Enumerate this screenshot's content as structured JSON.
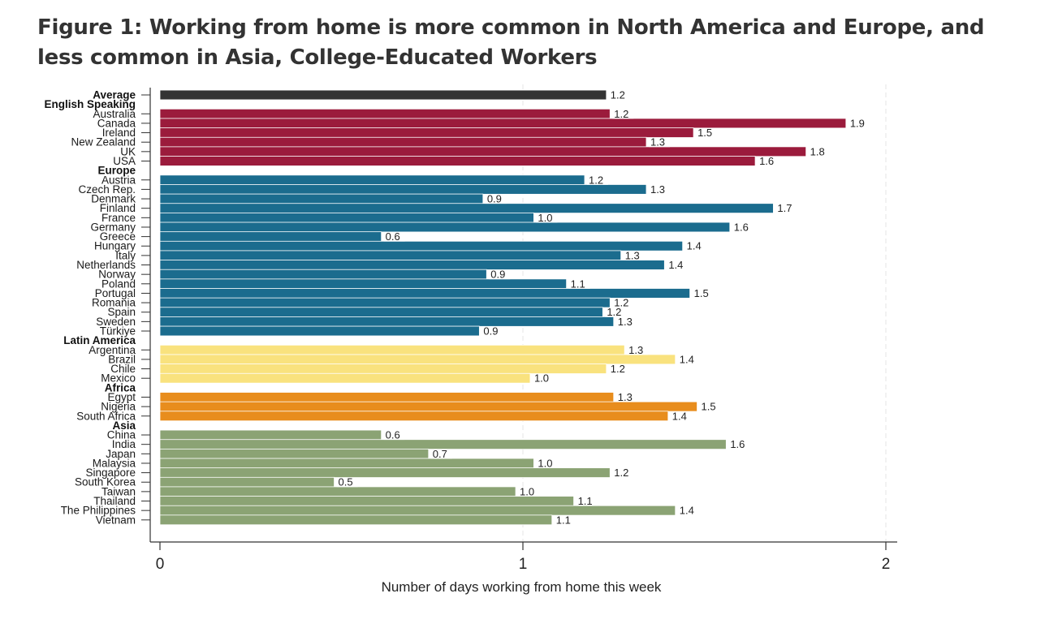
{
  "figure": {
    "title": "Figure 1: Working from home is more common in North America and Europe, and less common in Asia, College-Educated Workers"
  },
  "chart_data": {
    "type": "bar",
    "orientation": "horizontal",
    "xlabel": "Number of days working from home this week",
    "xlim": [
      0,
      2
    ],
    "xticks": [
      "0",
      "1",
      "2"
    ],
    "grid": "vertical dashed gridlines at 1 and 2",
    "groups": [
      {
        "name": "",
        "color": "#333333",
        "bars": [
          {
            "label": "Average",
            "value": 1.23,
            "display": "1.2",
            "bold": true
          }
        ]
      },
      {
        "name": "English Speaking",
        "color": "#9B1B3C",
        "bars": [
          {
            "label": "Australia",
            "value": 1.24,
            "display": "1.2"
          },
          {
            "label": "Canada",
            "value": 1.89,
            "display": "1.9"
          },
          {
            "label": "Ireland",
            "value": 1.47,
            "display": "1.5"
          },
          {
            "label": "New Zealand",
            "value": 1.34,
            "display": "1.3"
          },
          {
            "label": "UK",
            "value": 1.78,
            "display": "1.8"
          },
          {
            "label": "USA",
            "value": 1.64,
            "display": "1.6"
          }
        ]
      },
      {
        "name": "Europe",
        "color": "#1B6C8E",
        "bars": [
          {
            "label": "Austria",
            "value": 1.17,
            "display": "1.2"
          },
          {
            "label": "Czech Rep.",
            "value": 1.34,
            "display": "1.3"
          },
          {
            "label": "Denmark",
            "value": 0.89,
            "display": "0.9"
          },
          {
            "label": "Finland",
            "value": 1.69,
            "display": "1.7"
          },
          {
            "label": "France",
            "value": 1.03,
            "display": "1.0"
          },
          {
            "label": "Germany",
            "value": 1.57,
            "display": "1.6"
          },
          {
            "label": "Greece",
            "value": 0.61,
            "display": "0.6"
          },
          {
            "label": "Hungary",
            "value": 1.44,
            "display": "1.4"
          },
          {
            "label": "Italy",
            "value": 1.27,
            "display": "1.3"
          },
          {
            "label": "Netherlands",
            "value": 1.39,
            "display": "1.4"
          },
          {
            "label": "Norway",
            "value": 0.9,
            "display": "0.9"
          },
          {
            "label": "Poland",
            "value": 1.12,
            "display": "1.1"
          },
          {
            "label": "Portugal",
            "value": 1.46,
            "display": "1.5"
          },
          {
            "label": "Romania",
            "value": 1.24,
            "display": "1.2"
          },
          {
            "label": "Spain",
            "value": 1.22,
            "display": "1.2"
          },
          {
            "label": "Sweden",
            "value": 1.25,
            "display": "1.3"
          },
          {
            "label": "Türkiye",
            "value": 0.88,
            "display": "0.9"
          }
        ]
      },
      {
        "name": "Latin America",
        "color": "#F9E27E",
        "bars": [
          {
            "label": "Argentina",
            "value": 1.28,
            "display": "1.3"
          },
          {
            "label": "Brazil",
            "value": 1.42,
            "display": "1.4"
          },
          {
            "label": "Chile",
            "value": 1.23,
            "display": "1.2"
          },
          {
            "label": "Mexico",
            "value": 1.02,
            "display": "1.0"
          }
        ]
      },
      {
        "name": "Africa",
        "color": "#E88D1D",
        "bars": [
          {
            "label": "Egypt",
            "value": 1.25,
            "display": "1.3"
          },
          {
            "label": "Nigeria",
            "value": 1.48,
            "display": "1.5"
          },
          {
            "label": "South Africa",
            "value": 1.4,
            "display": "1.4"
          }
        ]
      },
      {
        "name": "Asia",
        "color": "#8BA374",
        "bars": [
          {
            "label": "China",
            "value": 0.61,
            "display": "0.6"
          },
          {
            "label": "India",
            "value": 1.56,
            "display": "1.6"
          },
          {
            "label": "Japan",
            "value": 0.74,
            "display": "0.7"
          },
          {
            "label": "Malaysia",
            "value": 1.03,
            "display": "1.0"
          },
          {
            "label": "Singapore",
            "value": 1.24,
            "display": "1.2"
          },
          {
            "label": "South Korea",
            "value": 0.48,
            "display": "0.5"
          },
          {
            "label": "Taiwan",
            "value": 0.98,
            "display": "1.0"
          },
          {
            "label": "Thailand",
            "value": 1.14,
            "display": "1.1"
          },
          {
            "label": "The Philippines",
            "value": 1.42,
            "display": "1.4"
          },
          {
            "label": "Vietnam",
            "value": 1.08,
            "display": "1.1"
          }
        ]
      }
    ]
  }
}
